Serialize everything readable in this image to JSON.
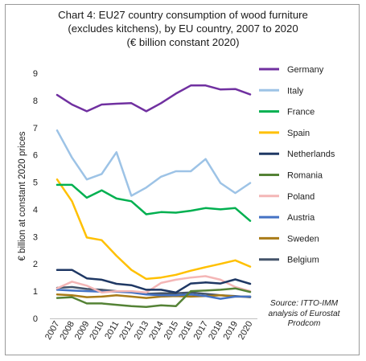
{
  "title_lines": [
    "Chart 4: EU27 country consumption of wood furniture",
    "(excludes kitchens), by EU country, 2007 to 2020",
    "(€ billion constant 2020)"
  ],
  "source_lines": [
    "Source: ITTO-IMM",
    "analysis of Eurostat",
    "Prodcom"
  ],
  "chart_data": {
    "type": "line",
    "title": "Chart 4: EU27 country consumption of wood furniture (excludes kitchens), by EU country, 2007 to 2020 (€ billion constant 2020)",
    "xlabel": "",
    "ylabel": "€ billion at constant 2020 prices",
    "ylim": [
      0,
      9
    ],
    "yticks": [
      0,
      1,
      2,
      3,
      4,
      5,
      6,
      7,
      8,
      9
    ],
    "grid": false,
    "legend": "right",
    "x": [
      "2007",
      "2008",
      "2009",
      "2010",
      "2011",
      "2012",
      "2013",
      "2014",
      "2015",
      "2016",
      "2017",
      "2018",
      "2019",
      "2020"
    ],
    "series": [
      {
        "name": "Germany",
        "color": "#7030a0",
        "values": [
          8.2,
          7.85,
          7.6,
          7.85,
          7.88,
          7.9,
          7.6,
          7.9,
          8.25,
          8.55,
          8.55,
          8.4,
          8.42,
          8.22
        ]
      },
      {
        "name": "Italy",
        "color": "#9dc3e6",
        "values": [
          6.9,
          5.9,
          5.1,
          5.3,
          6.1,
          4.5,
          4.8,
          5.2,
          5.4,
          5.4,
          5.85,
          4.97,
          4.6,
          4.97
        ]
      },
      {
        "name": "France",
        "color": "#00b050",
        "values": [
          4.9,
          4.9,
          4.43,
          4.7,
          4.4,
          4.3,
          3.82,
          3.9,
          3.88,
          3.95,
          4.05,
          4.0,
          4.05,
          3.58
        ]
      },
      {
        "name": "Spain",
        "color": "#ffc000",
        "values": [
          5.1,
          4.3,
          2.97,
          2.87,
          2.3,
          1.78,
          1.45,
          1.5,
          1.6,
          1.75,
          1.88,
          2.0,
          2.13,
          1.9
        ]
      },
      {
        "name": "Netherlands",
        "color": "#1f3864",
        "values": [
          1.78,
          1.78,
          1.47,
          1.42,
          1.27,
          1.22,
          1.05,
          1.05,
          0.95,
          1.28,
          1.32,
          1.28,
          1.43,
          1.27
        ]
      },
      {
        "name": "Romania",
        "color": "#548235",
        "values": [
          0.75,
          0.78,
          0.55,
          0.55,
          0.5,
          0.45,
          0.42,
          0.48,
          0.45,
          1.0,
          1.02,
          1.05,
          1.1,
          0.97
        ]
      },
      {
        "name": "Poland",
        "color": "#f4b6b6",
        "values": [
          1.1,
          1.35,
          1.2,
          0.95,
          1.0,
          1.0,
          0.95,
          1.3,
          1.42,
          1.5,
          1.55,
          1.42,
          1.15,
          1.0
        ]
      },
      {
        "name": "Austria",
        "color": "#4472c4",
        "values": [
          1.05,
          1.02,
          1.0,
          0.98,
          0.98,
          0.95,
          0.88,
          0.85,
          0.85,
          0.88,
          0.82,
          0.72,
          0.8,
          0.8
        ]
      },
      {
        "name": "Sweden",
        "color": "#a97b17",
        "values": [
          0.88,
          0.85,
          0.78,
          0.8,
          0.85,
          0.8,
          0.75,
          0.8,
          0.82,
          0.8,
          0.82,
          0.85,
          0.8,
          0.8
        ]
      },
      {
        "name": "Belgium",
        "color": "#44546a",
        "values": [
          1.12,
          1.15,
          1.08,
          1.05,
          1.0,
          0.98,
          0.9,
          0.92,
          0.92,
          0.95,
          0.9,
          0.85,
          0.82,
          0.78
        ]
      }
    ]
  }
}
